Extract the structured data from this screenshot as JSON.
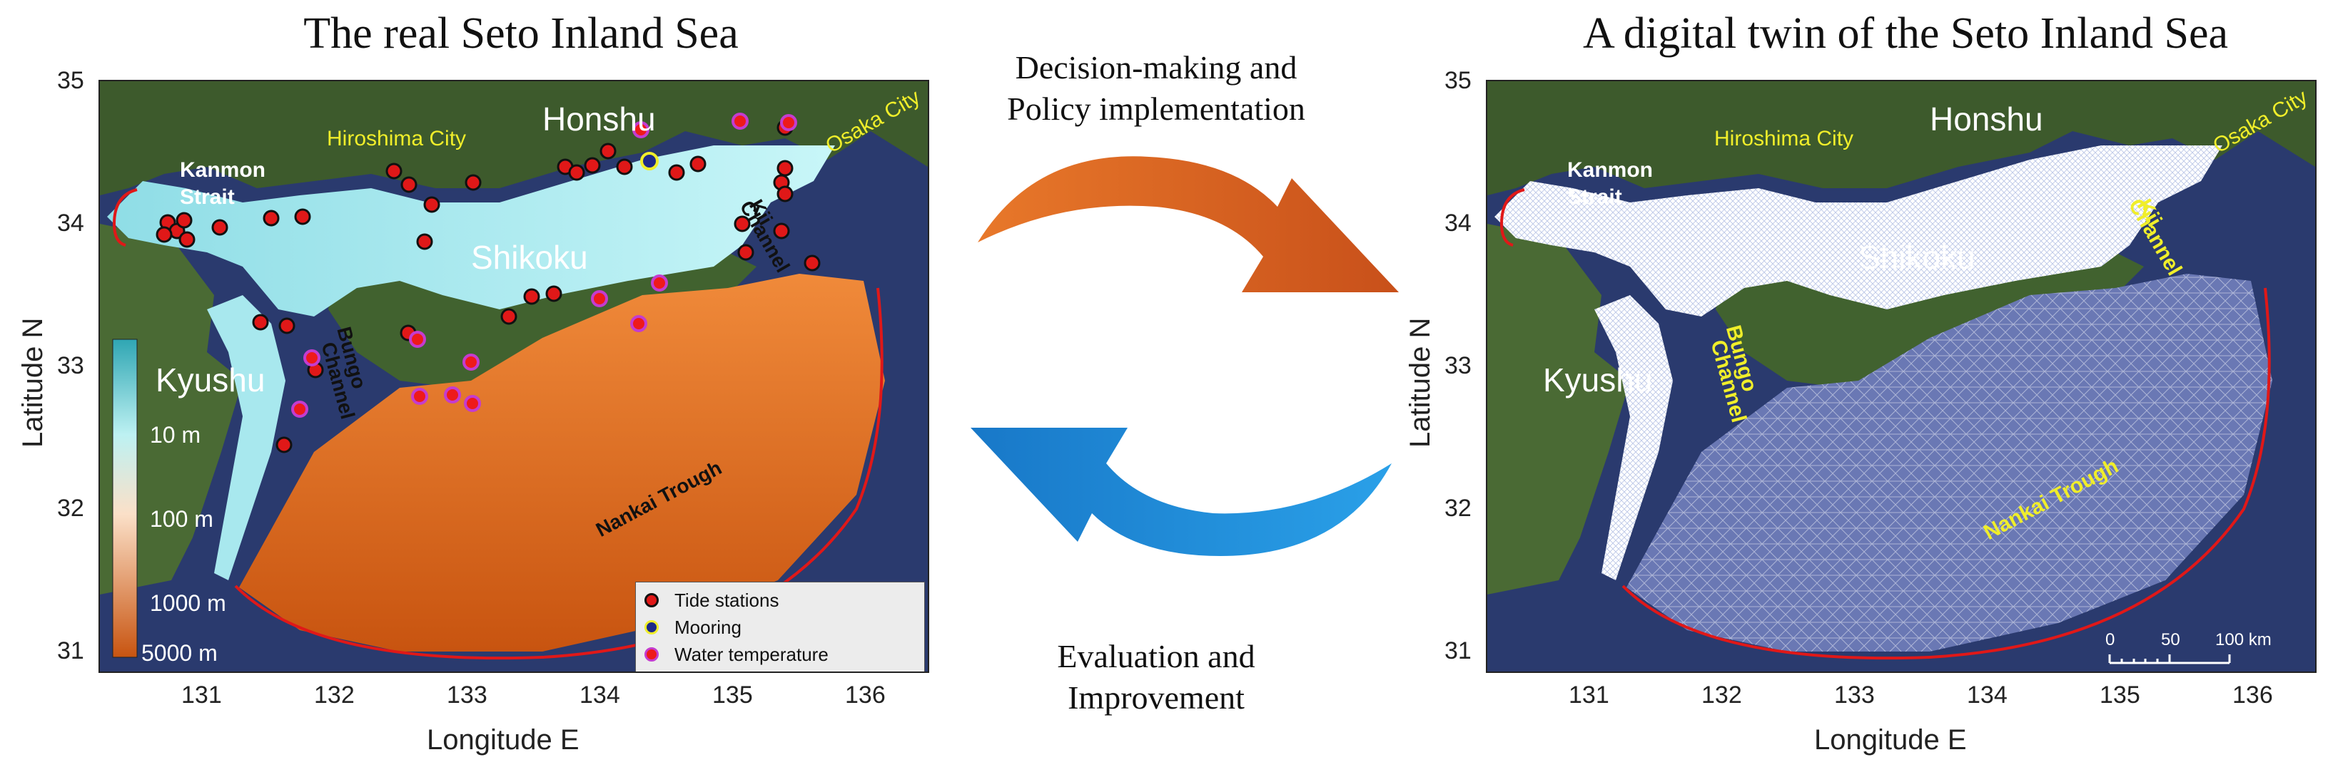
{
  "left_panel": {
    "title": "The real Seto Inland Sea",
    "xlabel": "Longitude E",
    "ylabel": "Latitude N",
    "xticks": [
      "131",
      "132",
      "133",
      "134",
      "135",
      "136"
    ],
    "yticks": [
      "35",
      "34",
      "33",
      "32",
      "31"
    ],
    "places": {
      "honshu": "Honshu",
      "shikoku": "Shikoku",
      "kyushu": "Kyushu",
      "hiroshima": "Hiroshima City",
      "osaka": "Osaka City",
      "kanmon_1": "Kanmon",
      "kanmon_2": "Strait",
      "kii_1": "Kii",
      "kii_2": "Channel",
      "bungo_1": "Bungo",
      "bungo_2": "Channel",
      "nankai": "Nankai Trough"
    },
    "colorbar": [
      "10 m",
      "100 m",
      "1000 m",
      "5000 m"
    ],
    "legend": {
      "tide": "Tide stations",
      "mooring": "Mooring",
      "water_temp": "Water temperature"
    }
  },
  "right_panel": {
    "title": "A digital twin of the Seto Inland Sea",
    "xlabel": "Longitude E",
    "ylabel": "Latitude N",
    "xticks": [
      "131",
      "132",
      "133",
      "134",
      "135",
      "136"
    ],
    "yticks": [
      "35",
      "34",
      "33",
      "32",
      "31"
    ],
    "places": {
      "honshu": "Honshu",
      "shikoku": "Shikoku",
      "kyushu": "Kyushu",
      "hiroshima": "Hiroshima City",
      "osaka": "Osaka City",
      "kanmon_1": "Kanmon",
      "kanmon_2": "Strait",
      "kii_1": "Kii",
      "kii_2": "Channel",
      "bungo_1": "Bungo",
      "bungo_2": "Channel",
      "nankai": "Nankai Trough"
    },
    "scalebar": [
      "0",
      "50",
      "100 km"
    ]
  },
  "cycle": {
    "top_1": "Decision-making and",
    "top_2": "Policy implementation",
    "bottom_1": "Evaluation and",
    "bottom_2": "Improvement"
  },
  "colors": {
    "sea": "#2a3a6e",
    "land": "#3d5a2c",
    "shallow": "#aeeef2",
    "deep": "#d9661a",
    "mesh": "#ffffff",
    "boundary": "#e01818",
    "arrow_orange": "#d9601c",
    "arrow_blue": "#1e8fd8"
  }
}
